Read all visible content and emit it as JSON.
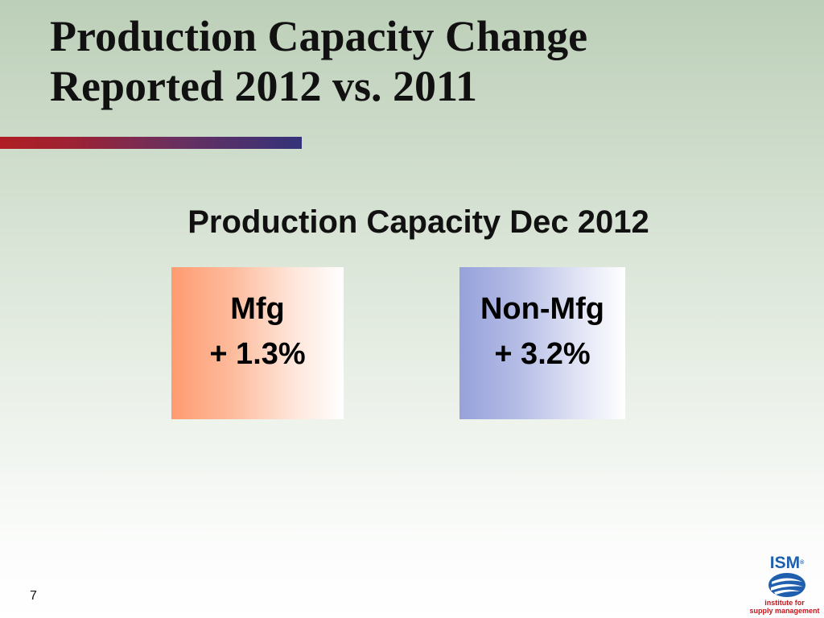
{
  "slide": {
    "title_line1": "Production Capacity Change",
    "title_line2": "Reported 2012 vs. 2011",
    "subtitle": "Production Capacity Dec 2012",
    "page_number": "7"
  },
  "boxes": [
    {
      "label": "Mfg",
      "value": "+ 1.3%",
      "color": "#fe9b70"
    },
    {
      "label": "Non-Mfg",
      "value": "+ 3.2%",
      "color": "#97a2db"
    }
  ],
  "logo": {
    "brand": "ISM",
    "registered": "®",
    "tagline_line1": "institute for",
    "tagline_line2": "supply management",
    "icon": "ism-swoosh-icon"
  },
  "colors": {
    "title_bar_start": "#b01e23",
    "title_bar_end": "#34337a",
    "logo_blue": "#1f5fae",
    "logo_red": "#c4151c"
  }
}
